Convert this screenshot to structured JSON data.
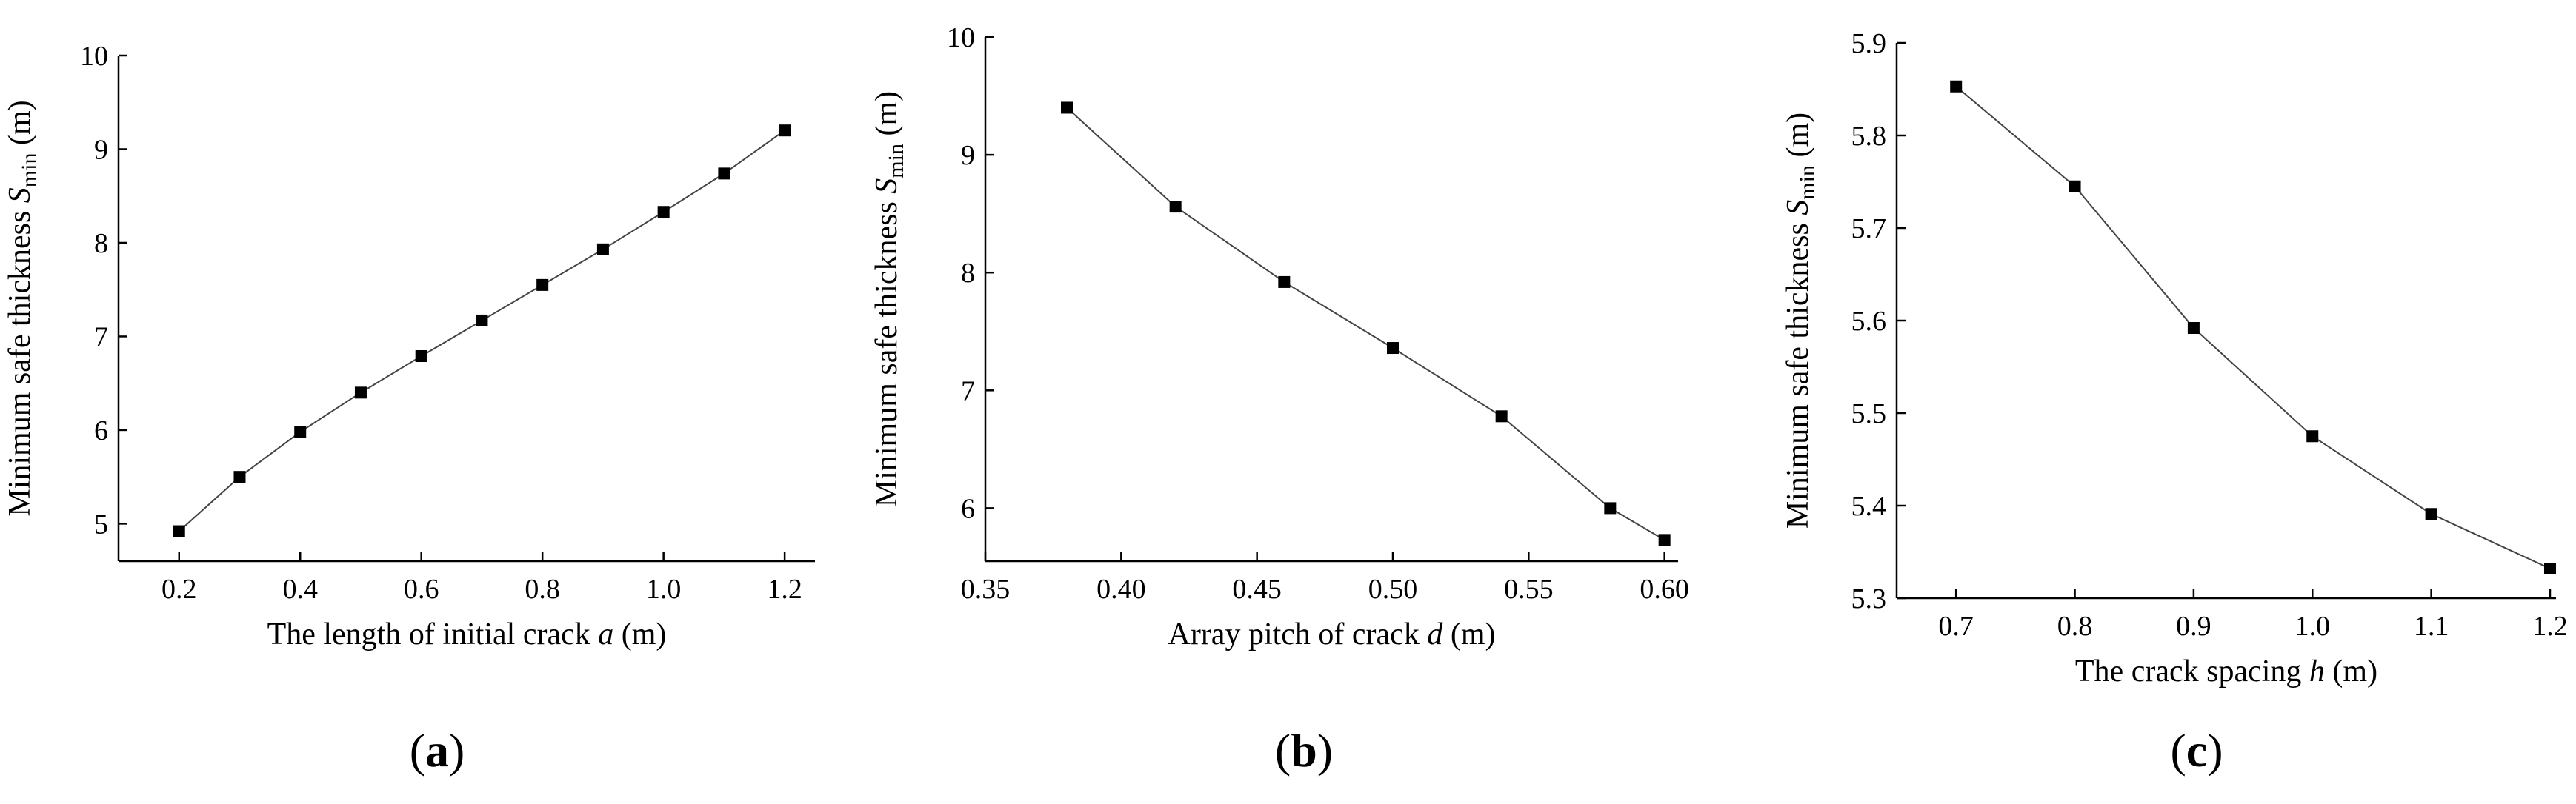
{
  "chart_data": [
    {
      "type": "line",
      "panel": "a",
      "xlabel_prefix": "The length of initial crack ",
      "xlabel_var": "a",
      "xlabel_suffix": " (m)",
      "ylabel_prefix": "Minimum safe thickness ",
      "ylabel_var": "S",
      "ylabel_sub": "min",
      "ylabel_suffix": " (m)",
      "xlim": [
        0.1,
        1.25
      ],
      "ylim": [
        4.6,
        10
      ],
      "xticks": [
        0.2,
        0.4,
        0.6,
        0.8,
        1.0,
        1.2
      ],
      "xtick_labels": [
        "0.2",
        "0.4",
        "0.6",
        "0.8",
        "1.0",
        "1.2"
      ],
      "yticks": [
        5,
        6,
        7,
        8,
        9,
        10
      ],
      "ytick_labels": [
        "5",
        "6",
        "7",
        "8",
        "9",
        "10"
      ],
      "x": [
        0.2,
        0.3,
        0.4,
        0.5,
        0.6,
        0.7,
        0.8,
        0.9,
        1.0,
        1.1,
        1.2
      ],
      "y": [
        4.92,
        5.5,
        5.98,
        6.4,
        6.79,
        7.17,
        7.55,
        7.93,
        8.33,
        8.74,
        9.2
      ]
    },
    {
      "type": "line",
      "panel": "b",
      "xlabel_prefix": "Array pitch of crack ",
      "xlabel_var": "d",
      "xlabel_suffix": " (m)",
      "ylabel_prefix": "Minimum safe thickness ",
      "ylabel_var": "S",
      "ylabel_sub": "min",
      "ylabel_suffix": " (m)",
      "xlim": [
        0.35,
        0.605
      ],
      "ylim": [
        5.55,
        10
      ],
      "xticks": [
        0.35,
        0.4,
        0.45,
        0.5,
        0.55,
        0.6
      ],
      "xtick_labels": [
        "0.35",
        "0.40",
        "0.45",
        "0.50",
        "0.55",
        "0.60"
      ],
      "yticks": [
        6,
        7,
        8,
        9,
        10
      ],
      "ytick_labels": [
        "6",
        "7",
        "8",
        "9",
        "10"
      ],
      "x": [
        0.38,
        0.42,
        0.46,
        0.5,
        0.54,
        0.58,
        0.6
      ],
      "y": [
        9.4,
        8.56,
        7.92,
        7.36,
        6.78,
        6.0,
        5.73
      ]
    },
    {
      "type": "line",
      "panel": "c",
      "xlabel_prefix": "The crack spacing ",
      "xlabel_var": "h",
      "xlabel_suffix": " (m)",
      "ylabel_prefix": "Minimum safe thickness ",
      "ylabel_var": "S",
      "ylabel_sub": "min",
      "ylabel_suffix": " (m)",
      "xlim": [
        0.65,
        1.205
      ],
      "ylim": [
        5.3,
        5.9
      ],
      "xticks": [
        0.7,
        0.8,
        0.9,
        1.0,
        1.1,
        1.2
      ],
      "xtick_labels": [
        "0.7",
        "0.8",
        "0.9",
        "1.0",
        "1.1",
        "1.2"
      ],
      "yticks": [
        5.3,
        5.4,
        5.5,
        5.6,
        5.7,
        5.8,
        5.9
      ],
      "ytick_labels": [
        "5.3",
        "5.4",
        "5.5",
        "5.6",
        "5.7",
        "5.8",
        "5.9"
      ],
      "x": [
        0.7,
        0.8,
        0.9,
        1.0,
        1.1,
        1.2
      ],
      "y": [
        5.853,
        5.745,
        5.592,
        5.475,
        5.391,
        5.332
      ]
    }
  ],
  "labels": {
    "open": "(",
    "close": ")",
    "a": "a",
    "b": "b",
    "c": "c"
  }
}
